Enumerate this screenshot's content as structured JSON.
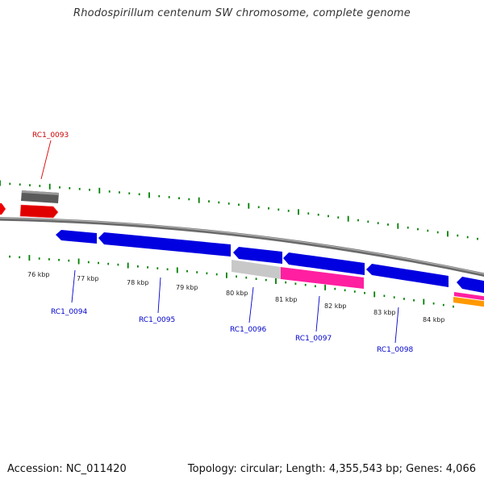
{
  "title": "Rhodospirillum centenum SW chromosome, complete genome",
  "footer": {
    "accession": "Accession: NC_011420",
    "summary": "Topology: circular; Length: 4,355,543 bp; Genes: 4,066"
  },
  "colors": {
    "forward_gene": "#ff0000",
    "reverse_gene": "#0000ff",
    "pseudo_gray": "#808080",
    "light_gray": "#c0c0c0",
    "pink": "#ff1493",
    "orange": "#ff9900",
    "tick": "#008000",
    "backbone": "#888888",
    "label_forward": "#cc0000",
    "label_reverse": "#0000cc"
  },
  "scale_labels": [
    "76 kbp",
    "77 kbp",
    "78 kbp",
    "79 kbp",
    "80 kbp",
    "81 kbp",
    "82 kbp",
    "83 kbp",
    "84 kbp"
  ],
  "gene_labels": [
    {
      "text": "RC1_0093",
      "strand": "forward"
    },
    {
      "text": "RC1_0094",
      "strand": "reverse"
    },
    {
      "text": "RC1_0095",
      "strand": "reverse"
    },
    {
      "text": "RC1_0096",
      "strand": "reverse"
    },
    {
      "text": "RC1_0097",
      "strand": "reverse"
    },
    {
      "text": "RC1_0098",
      "strand": "reverse"
    }
  ]
}
